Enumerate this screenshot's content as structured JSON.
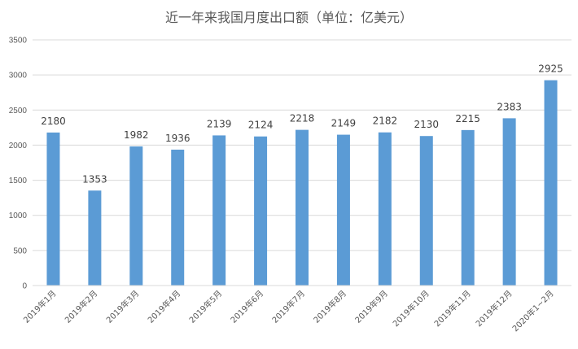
{
  "chart_data": {
    "type": "bar",
    "title": "近一年来我国月度出口额（单位：亿美元）",
    "categories": [
      "2019年1月",
      "2019年2月",
      "2019年3月",
      "2019年4月",
      "2019年5月",
      "2019年6月",
      "2019年7月",
      "2019年8月",
      "2019年9月",
      "2019年10月",
      "2019年11月",
      "2019年12月",
      "2020年1~2月"
    ],
    "values": [
      2180,
      1353,
      1982,
      1936,
      2139,
      2124,
      2218,
      2149,
      2182,
      2130,
      2215,
      2383,
      2925
    ],
    "y_ticks": [
      "0",
      "500",
      "1000",
      "1500",
      "2000",
      "2500",
      "3000",
      "3500"
    ],
    "ylim": [
      0,
      3500
    ],
    "grid": true,
    "legend": "none",
    "bar_color": "#5B9BD5",
    "grid_color": "#D9D9D9"
  }
}
